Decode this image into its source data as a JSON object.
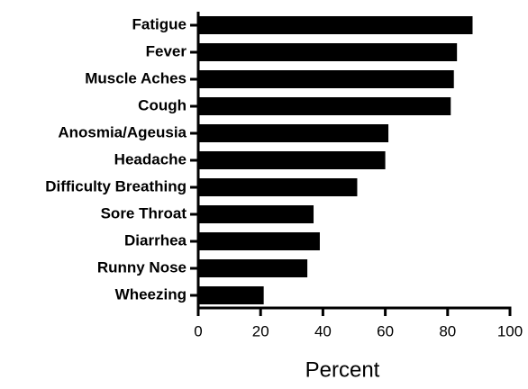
{
  "chart_data": {
    "type": "barh",
    "xlabel": "Percent",
    "categories": [
      "Fatigue",
      "Fever",
      "Muscle Aches",
      "Cough",
      "Anosmia/Ageusia",
      "Headache",
      "Difficulty Breathing",
      "Sore Throat",
      "Diarrhea",
      "Runny Nose",
      "Wheezing"
    ],
    "values": [
      88,
      83,
      82,
      81,
      61,
      60,
      51,
      37,
      39,
      35,
      21
    ],
    "color": "#000000",
    "xlim": [
      0,
      100
    ],
    "xticks": [
      0,
      20,
      40,
      60,
      80,
      100
    ],
    "grid": false
  }
}
